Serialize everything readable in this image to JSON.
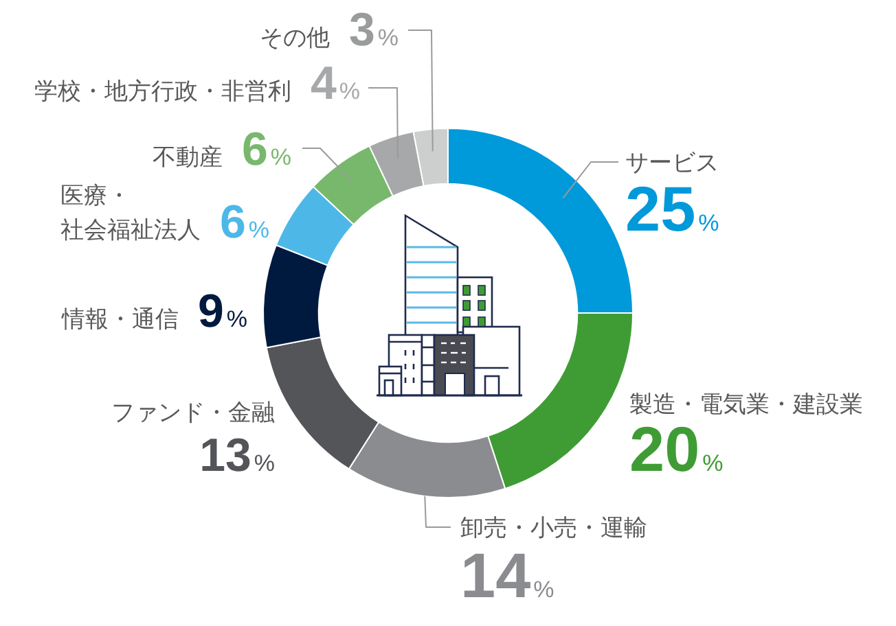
{
  "chart_data": {
    "type": "donut",
    "categories": [
      "サービス",
      "製造・電気業・建設業",
      "卸売・小売・運輸",
      "ファンド・金融",
      "情報・通信",
      "医療・社会福祉法人",
      "不動産",
      "学校・地方行政・非営利",
      "その他"
    ],
    "values": [
      25,
      20,
      14,
      13,
      9,
      6,
      6,
      4,
      3
    ],
    "colors": [
      "#0099d9",
      "#3f9c35",
      "#8a8c8f",
      "#535559",
      "#001a3f",
      "#4db8e8",
      "#78b86c",
      "#a7a8aa",
      "#cdcfcf"
    ],
    "value_labels": [
      "25%",
      "20%",
      "14%",
      "13%",
      "9%",
      "6%",
      "6%",
      "4%",
      "3%"
    ]
  }
}
